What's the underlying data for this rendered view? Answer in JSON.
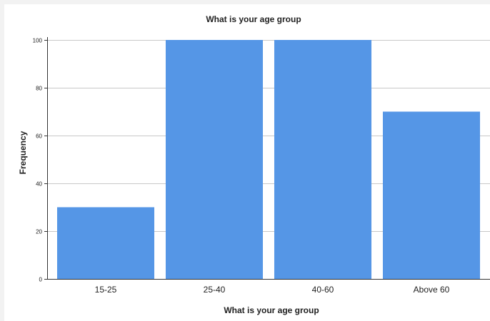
{
  "chart_data": {
    "type": "bar",
    "title": "What is your age group",
    "xlabel": "What is your age group",
    "ylabel": "Frequency",
    "categories": [
      "15-25",
      "25-40",
      "40-60",
      "Above 60"
    ],
    "values": [
      30,
      100,
      100,
      70
    ],
    "ylim": [
      0,
      100
    ],
    "yticks": [
      0,
      20,
      40,
      60,
      80,
      100
    ],
    "grid": true,
    "bar_color": "#5596e6"
  }
}
